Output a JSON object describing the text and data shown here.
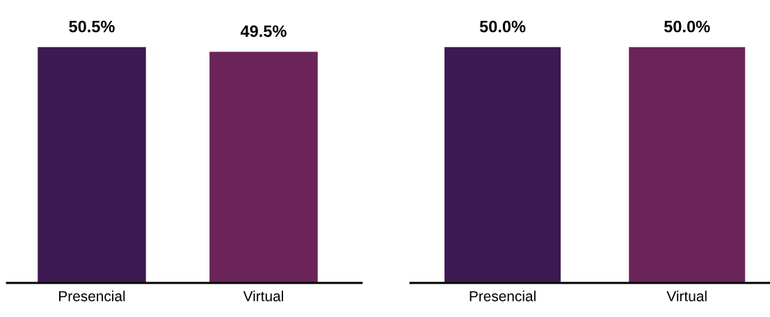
{
  "chart_data": [
    {
      "type": "bar",
      "categories": [
        "Presencial",
        "Virtual"
      ],
      "values": [
        50.5,
        49.5
      ],
      "colors": [
        "#3d1a52",
        "#6b2459"
      ],
      "value_labels": [
        "50.5%",
        "49.5%"
      ],
      "tick_labels": "x",
      "grid": false,
      "legend": false
    },
    {
      "type": "bar",
      "categories": [
        "Presencial",
        "Virtual"
      ],
      "values": [
        50.0,
        50.0
      ],
      "colors": [
        "#3d1a52",
        "#6b2459"
      ],
      "value_labels": [
        "50.0%",
        "50.0%"
      ],
      "tick_labels": "x",
      "grid": false,
      "legend": false
    }
  ]
}
